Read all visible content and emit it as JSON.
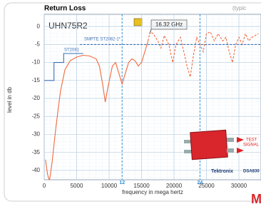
{
  "chart_data": {
    "type": "line",
    "title": "Return Loss",
    "subtitle": "(typic",
    "annotations": {
      "model": "UHN75R2",
      "marker": "16.32 GHz",
      "st2082": "SMPTE ST2082-1*",
      "st2081": "ST2081",
      "test": "TEST",
      "signal": "SIGNAL",
      "brand": "Tektronix",
      "instrument": "DSA830",
      "corner": "M"
    },
    "x_label": "frequency in mega hertz",
    "y_label": "level in db",
    "xlim": [
      0,
      33400
    ],
    "ylim": [
      -42.6,
      3.4
    ],
    "xticks": [
      0,
      5000,
      10000,
      15000,
      20000,
      25000,
      30000
    ],
    "yticks": [
      0,
      -5,
      -10,
      -15,
      -20,
      -25,
      -30,
      -35,
      -40
    ],
    "grid": true,
    "vline_color": "#2f8fd8",
    "vlines": [
      {
        "value": 12000,
        "label": "12"
      },
      {
        "value": 24000,
        "label": "24"
      }
    ],
    "series": [
      {
        "color": "#f06a3c",
        "dashed": false,
        "x": [
          200,
          500,
          800,
          1200,
          1800,
          2500,
          3200,
          4000,
          5000,
          6000,
          7000,
          8000,
          8500,
          9000,
          9400,
          9800,
          10500,
          11000,
          11500,
          12000,
          12500,
          13000,
          13500,
          14000,
          14500,
          15000,
          15500,
          16000
        ],
        "values": [
          -37,
          -41,
          -43,
          -38,
          -28,
          -18,
          -12,
          -9.5,
          -8.5,
          -8,
          -8.2,
          -9,
          -11,
          -16,
          -21,
          -17,
          -11,
          -10,
          -13,
          -16,
          -13,
          -10,
          -9,
          -9.5,
          -11,
          -10,
          -7,
          -4
        ]
      },
      {
        "color": "#f06a3c",
        "dashed": true,
        "x": [
          16000,
          16320,
          16800,
          17500,
          18000,
          18500,
          19200,
          19800,
          20300,
          21000,
          21500,
          22000,
          22500,
          23000,
          23500,
          24000,
          24500,
          25000,
          25600,
          26200,
          26800,
          27500,
          28000,
          28500,
          29000,
          29500,
          30000,
          30500,
          31000,
          31500,
          32000,
          33000
        ],
        "values": [
          -4,
          -1.5,
          -2,
          -4,
          -6,
          -2.5,
          -5,
          -10,
          -5,
          -3,
          -7,
          -11,
          -14,
          -8,
          -3,
          -5,
          -7,
          -2,
          -1.5,
          -4,
          -2,
          -4,
          -3,
          -7,
          -10,
          -5,
          -3,
          -5,
          -2,
          -4,
          -3,
          -2
        ]
      },
      {
        "color": "#3a6fb5",
        "dashed": false,
        "x": [
          0,
          1500,
          1500,
          3000,
          3000,
          6000
        ],
        "values": [
          -15,
          -15,
          -10,
          -10,
          -7.5,
          -7.5
        ]
      },
      {
        "color": "#3a6fb5",
        "dashed": true,
        "x": [
          5500,
          33400
        ],
        "values": [
          -5,
          -5
        ]
      }
    ]
  }
}
